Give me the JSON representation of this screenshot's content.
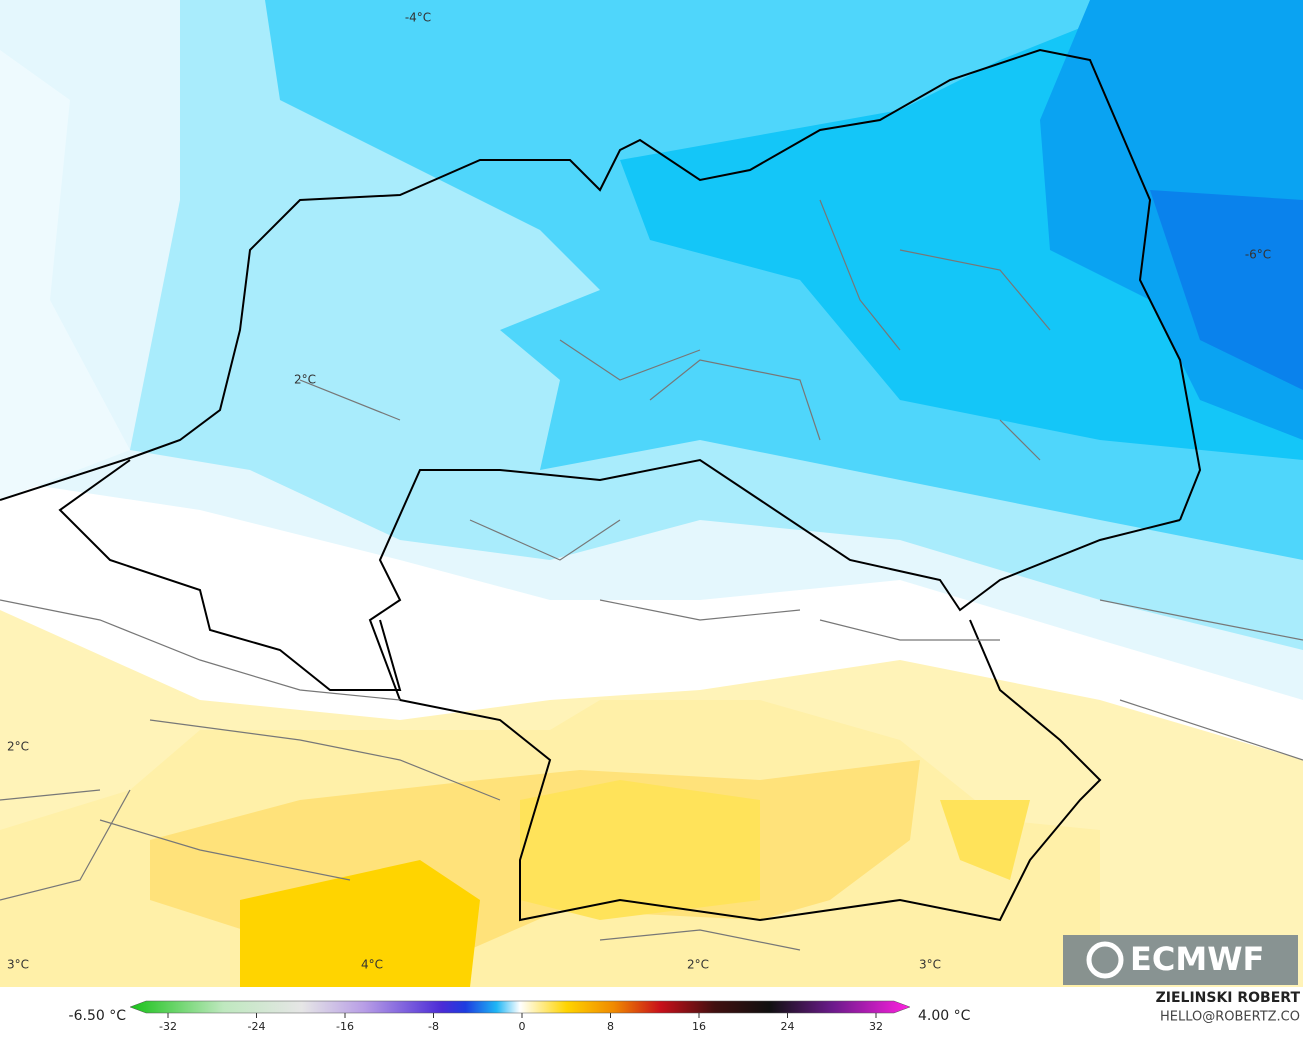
{
  "map": {
    "contour_labels": [
      "-4°C",
      "-6°C",
      "2°C",
      "2°C",
      "3°C",
      "4°C",
      "2°C",
      "3°C"
    ],
    "colorbar": {
      "min_label": "-6.50 °C",
      "max_label": "4.00 °C",
      "ticks": [
        -32,
        -24,
        -16,
        -8,
        0,
        8,
        16,
        24,
        32
      ]
    },
    "author": "ZIELINSKI ROBERT",
    "contact": "HELLO@ROBERTZ.CO",
    "logo": "ECMWF"
  }
}
